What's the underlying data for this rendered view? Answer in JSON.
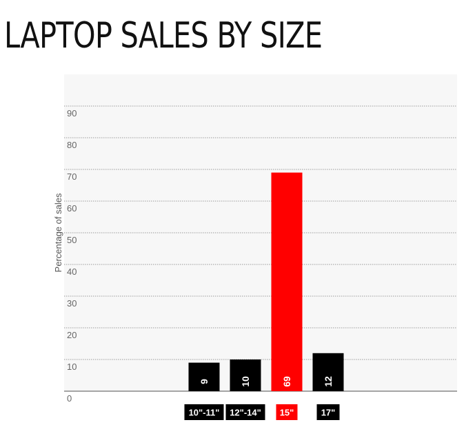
{
  "chart_data": {
    "type": "bar",
    "title": "LAPTOP SALES BY SIZE",
    "ylabel": "Percentage of sales",
    "xlabel": "",
    "categories": [
      "10\"-11\"",
      "12\"-14\"",
      "15\"",
      "17\""
    ],
    "values": [
      9,
      10,
      69,
      12
    ],
    "ylim": [
      0,
      90
    ],
    "yticks": [
      0,
      10,
      20,
      30,
      40,
      50,
      60,
      70,
      80,
      90
    ],
    "grid": true,
    "colors": {
      "default_bar": "#000000",
      "highlight_bar": "#ff0000",
      "plot_background": "#f7f7f7",
      "gridline": "#9a9a9a"
    },
    "highlight_category": "15\""
  }
}
